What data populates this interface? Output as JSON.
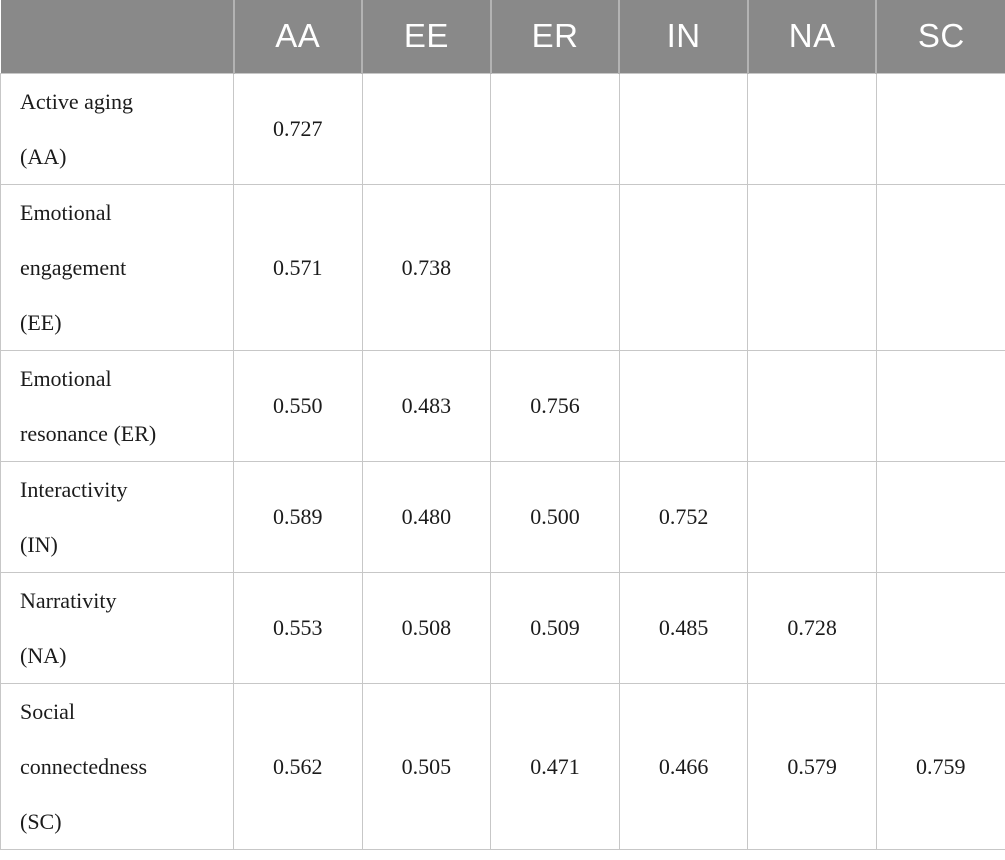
{
  "colors": {
    "header_bg": "#898989",
    "header_text": "#ffffff",
    "header_divider": "#b3b3b3",
    "body_border": "#c7c7c7",
    "body_text": "#1b1b1b",
    "page_bg": "#ffffff"
  },
  "table": {
    "columns": [
      "",
      "AA",
      "EE",
      "ER",
      "IN",
      "NA",
      "SC"
    ],
    "rows": [
      {
        "label": "Active aging (AA)",
        "label_lines": [
          "Active aging",
          "(AA)"
        ],
        "values": [
          "0.727",
          "",
          "",
          "",
          "",
          ""
        ]
      },
      {
        "label": "Emotional engagement (EE)",
        "label_lines": [
          "Emotional",
          "engagement",
          "(EE)"
        ],
        "values": [
          "0.571",
          "0.738",
          "",
          "",
          "",
          ""
        ]
      },
      {
        "label": "Emotional resonance (ER)",
        "label_lines": [
          "Emotional",
          "resonance (ER)"
        ],
        "values": [
          "0.550",
          "0.483",
          "0.756",
          "",
          "",
          ""
        ]
      },
      {
        "label": "Interactivity (IN)",
        "label_lines": [
          "Interactivity",
          "(IN)"
        ],
        "values": [
          "0.589",
          "0.480",
          "0.500",
          "0.752",
          "",
          ""
        ]
      },
      {
        "label": "Narrativity (NA)",
        "label_lines": [
          "Narrativity",
          "(NA)"
        ],
        "values": [
          "0.553",
          "0.508",
          "0.509",
          "0.485",
          "0.728",
          ""
        ]
      },
      {
        "label": "Social connectedness (SC)",
        "label_lines": [
          "Social",
          "connectedness",
          "(SC)"
        ],
        "values": [
          "0.562",
          "0.505",
          "0.471",
          "0.466",
          "0.579",
          "0.759"
        ]
      }
    ]
  }
}
